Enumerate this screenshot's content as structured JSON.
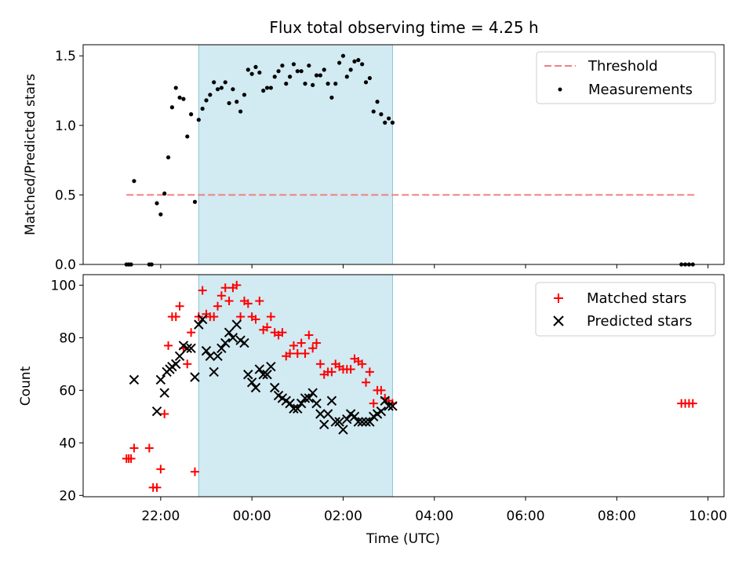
{
  "title": "Flux total observing time = 4.25 h",
  "xlabel": "Time (UTC)",
  "x_ticks": [
    "22:00",
    "00:00",
    "02:00",
    "04:00",
    "06:00",
    "08:00",
    "10:00"
  ],
  "observing_window": {
    "start": "22:50",
    "end": "03:05",
    "color": "#add8e6"
  },
  "chart_data": [
    {
      "type": "scatter",
      "ylabel": "Matched/Predicted stars",
      "ylim": [
        0,
        1.58
      ],
      "y_ticks": [
        "0.0",
        "0.5",
        "1.0",
        "1.5"
      ],
      "legend_position": "top-right",
      "threshold": {
        "name": "Threshold",
        "value": 0.5,
        "x_range": [
          "21:15",
          "09:45"
        ],
        "color": "#f08080",
        "style": "dashed"
      },
      "series": [
        {
          "name": "Measurements",
          "color": "#000000",
          "marker": "dot",
          "points": [
            [
              "21:15",
              0
            ],
            [
              "21:18",
              0
            ],
            [
              "21:21",
              0
            ],
            [
              "21:25",
              0.6
            ],
            [
              "21:45",
              0
            ],
            [
              "21:48",
              0
            ],
            [
              "21:55",
              0.44
            ],
            [
              "22:00",
              0.36
            ],
            [
              "22:05",
              0.51
            ],
            [
              "22:10",
              0.77
            ],
            [
              "22:15",
              1.13
            ],
            [
              "22:20",
              1.27
            ],
            [
              "22:25",
              1.2
            ],
            [
              "22:30",
              1.19
            ],
            [
              "22:35",
              0.92
            ],
            [
              "22:40",
              1.08
            ],
            [
              "22:45",
              0.45
            ],
            [
              "22:50",
              1.04
            ],
            [
              "22:55",
              1.12
            ],
            [
              "23:00",
              1.18
            ],
            [
              "23:05",
              1.22
            ],
            [
              "23:10",
              1.31
            ],
            [
              "23:15",
              1.26
            ],
            [
              "23:20",
              1.27
            ],
            [
              "23:25",
              1.31
            ],
            [
              "23:30",
              1.16
            ],
            [
              "23:35",
              1.26
            ],
            [
              "23:40",
              1.17
            ],
            [
              "23:45",
              1.1
            ],
            [
              "23:50",
              1.22
            ],
            [
              "23:55",
              1.4
            ],
            [
              "00:00",
              1.37
            ],
            [
              "00:05",
              1.42
            ],
            [
              "00:10",
              1.38
            ],
            [
              "00:15",
              1.25
            ],
            [
              "00:20",
              1.27
            ],
            [
              "00:25",
              1.27
            ],
            [
              "00:30",
              1.35
            ],
            [
              "00:35",
              1.39
            ],
            [
              "00:40",
              1.43
            ],
            [
              "00:45",
              1.3
            ],
            [
              "00:50",
              1.35
            ],
            [
              "00:55",
              1.44
            ],
            [
              "01:00",
              1.39
            ],
            [
              "01:05",
              1.39
            ],
            [
              "01:10",
              1.3
            ],
            [
              "01:15",
              1.43
            ],
            [
              "01:20",
              1.29
            ],
            [
              "01:25",
              1.36
            ],
            [
              "01:30",
              1.36
            ],
            [
              "01:35",
              1.4
            ],
            [
              "01:40",
              1.3
            ],
            [
              "01:45",
              1.2
            ],
            [
              "01:50",
              1.3
            ],
            [
              "01:55",
              1.45
            ],
            [
              "02:00",
              1.5
            ],
            [
              "02:05",
              1.35
            ],
            [
              "02:10",
              1.4
            ],
            [
              "02:15",
              1.46
            ],
            [
              "02:20",
              1.47
            ],
            [
              "02:25",
              1.44
            ],
            [
              "02:30",
              1.31
            ],
            [
              "02:35",
              1.34
            ],
            [
              "02:40",
              1.1
            ],
            [
              "02:45",
              1.17
            ],
            [
              "02:50",
              1.08
            ],
            [
              "02:55",
              1.02
            ],
            [
              "03:00",
              1.05
            ],
            [
              "03:05",
              1.02
            ],
            [
              "09:25",
              0
            ],
            [
              "09:30",
              0
            ],
            [
              "09:35",
              0
            ],
            [
              "09:40",
              0
            ]
          ]
        }
      ]
    },
    {
      "type": "scatter",
      "ylabel": "Count",
      "ylim": [
        19.5,
        104
      ],
      "y_ticks": [
        "20",
        "40",
        "60",
        "80",
        "100"
      ],
      "legend_position": "top-right",
      "series": [
        {
          "name": "Matched stars",
          "color": "#ff0000",
          "marker": "plus",
          "points": [
            [
              "21:15",
              34
            ],
            [
              "21:18",
              34
            ],
            [
              "21:21",
              34
            ],
            [
              "21:25",
              38
            ],
            [
              "21:45",
              38
            ],
            [
              "21:50",
              23
            ],
            [
              "21:55",
              23
            ],
            [
              "22:00",
              30
            ],
            [
              "22:05",
              51
            ],
            [
              "22:10",
              77
            ],
            [
              "22:15",
              88
            ],
            [
              "22:20",
              88
            ],
            [
              "22:25",
              92
            ],
            [
              "22:30",
              76
            ],
            [
              "22:35",
              70
            ],
            [
              "22:40",
              82
            ],
            [
              "22:45",
              29
            ],
            [
              "22:50",
              88
            ],
            [
              "22:55",
              98
            ],
            [
              "23:00",
              89
            ],
            [
              "23:05",
              88
            ],
            [
              "23:10",
              88
            ],
            [
              "23:15",
              92
            ],
            [
              "23:20",
              96
            ],
            [
              "23:25",
              99
            ],
            [
              "23:30",
              94
            ],
            [
              "23:35",
              99
            ],
            [
              "23:40",
              100
            ],
            [
              "23:45",
              88
            ],
            [
              "23:50",
              94
            ],
            [
              "23:55",
              93
            ],
            [
              "00:00",
              88
            ],
            [
              "00:05",
              87
            ],
            [
              "00:10",
              94
            ],
            [
              "00:15",
              83
            ],
            [
              "00:20",
              84
            ],
            [
              "00:25",
              88
            ],
            [
              "00:30",
              82
            ],
            [
              "00:35",
              81
            ],
            [
              "00:40",
              82
            ],
            [
              "00:45",
              73
            ],
            [
              "00:50",
              74
            ],
            [
              "00:55",
              77
            ],
            [
              "01:00",
              74
            ],
            [
              "01:05",
              78
            ],
            [
              "01:10",
              74
            ],
            [
              "01:15",
              81
            ],
            [
              "01:20",
              76
            ],
            [
              "01:25",
              78
            ],
            [
              "01:30",
              70
            ],
            [
              "01:35",
              66
            ],
            [
              "01:40",
              67
            ],
            [
              "01:45",
              67
            ],
            [
              "01:50",
              70
            ],
            [
              "01:55",
              69
            ],
            [
              "02:00",
              68
            ],
            [
              "02:05",
              68
            ],
            [
              "02:10",
              68
            ],
            [
              "02:15",
              72
            ],
            [
              "02:20",
              71
            ],
            [
              "02:25",
              70
            ],
            [
              "02:30",
              63
            ],
            [
              "02:35",
              67
            ],
            [
              "02:40",
              55
            ],
            [
              "02:45",
              60
            ],
            [
              "02:50",
              60
            ],
            [
              "02:55",
              57
            ],
            [
              "03:00",
              56
            ],
            [
              "03:05",
              55
            ],
            [
              "09:25",
              55
            ],
            [
              "09:30",
              55
            ],
            [
              "09:35",
              55
            ],
            [
              "09:40",
              55
            ]
          ]
        },
        {
          "name": "Predicted stars",
          "color": "#000000",
          "marker": "x",
          "points": [
            [
              "21:25",
              64
            ],
            [
              "21:55",
              52
            ],
            [
              "22:00",
              64
            ],
            [
              "22:05",
              59
            ],
            [
              "22:08",
              67
            ],
            [
              "22:12",
              68
            ],
            [
              "22:15",
              69
            ],
            [
              "22:20",
              70
            ],
            [
              "22:25",
              73
            ],
            [
              "22:30",
              77
            ],
            [
              "22:35",
              76
            ],
            [
              "22:40",
              76
            ],
            [
              "22:45",
              65
            ],
            [
              "22:50",
              85
            ],
            [
              "22:55",
              87
            ],
            [
              "23:00",
              75
            ],
            [
              "23:05",
              73
            ],
            [
              "23:10",
              67
            ],
            [
              "23:15",
              73
            ],
            [
              "23:20",
              76
            ],
            [
              "23:25",
              78
            ],
            [
              "23:30",
              82
            ],
            [
              "23:35",
              80
            ],
            [
              "23:40",
              85
            ],
            [
              "23:45",
              79
            ],
            [
              "23:50",
              78
            ],
            [
              "23:55",
              66
            ],
            [
              "00:00",
              63
            ],
            [
              "00:05",
              61
            ],
            [
              "00:10",
              68
            ],
            [
              "00:15",
              66
            ],
            [
              "00:20",
              66
            ],
            [
              "00:25",
              69
            ],
            [
              "00:30",
              61
            ],
            [
              "00:35",
              58
            ],
            [
              "00:40",
              57
            ],
            [
              "00:45",
              56
            ],
            [
              "00:50",
              55
            ],
            [
              "00:55",
              53
            ],
            [
              "01:00",
              53
            ],
            [
              "01:05",
              55
            ],
            [
              "01:10",
              57
            ],
            [
              "01:15",
              57
            ],
            [
              "01:20",
              59
            ],
            [
              "01:25",
              55
            ],
            [
              "01:30",
              51
            ],
            [
              "01:35",
              47
            ],
            [
              "01:40",
              51
            ],
            [
              "01:45",
              56
            ],
            [
              "01:50",
              48
            ],
            [
              "01:55",
              48
            ],
            [
              "02:00",
              45
            ],
            [
              "02:05",
              49
            ],
            [
              "02:10",
              51
            ],
            [
              "02:15",
              50
            ],
            [
              "02:20",
              48
            ],
            [
              "02:25",
              48
            ],
            [
              "02:30",
              48
            ],
            [
              "02:35",
              48
            ],
            [
              "02:40",
              50
            ],
            [
              "02:45",
              51
            ],
            [
              "02:50",
              52
            ],
            [
              "02:55",
              56
            ],
            [
              "03:00",
              54
            ],
            [
              "03:05",
              54
            ]
          ]
        }
      ]
    }
  ]
}
